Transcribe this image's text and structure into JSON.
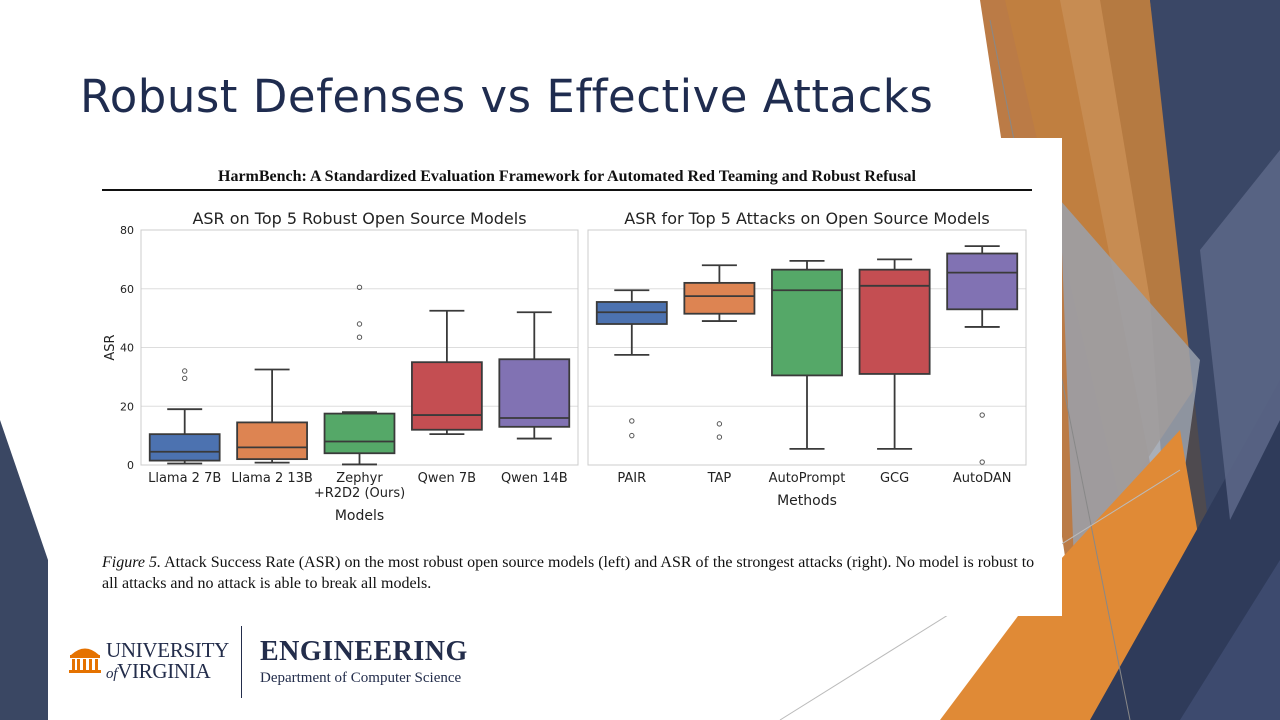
{
  "slide": {
    "title": "Robust Defenses vs Effective Attacks"
  },
  "figure": {
    "paper_header": "HarmBench: A Standardized Evaluation Framework for Automated Red Teaming and Robust Refusal",
    "caption_label": "Figure 5.",
    "caption_text": " Attack Success Rate (ASR) on the most robust open source models (left) and ASR of the strongest attacks (right). No model is robust to all attacks and no attack is able to break all models."
  },
  "logos": {
    "university_line1": "UNIVERSITY",
    "university_line2": "VIRGINIA",
    "university_of": "of",
    "engineering": "ENGINEERING",
    "department": "Department of Computer Science"
  },
  "colors": {
    "navy": "#1f2c4f",
    "orange": "#e07b22",
    "blue_box": "#4c72b0",
    "orange_box": "#dd8452",
    "green_box": "#55a868",
    "red_box": "#c44e52",
    "purple_box": "#8172b3"
  },
  "chart_data": [
    {
      "type": "box",
      "title": "ASR on Top 5 Robust Open Source Models",
      "xlabel": "Models",
      "ylabel": "ASR",
      "ylim": [
        0,
        80
      ],
      "yticks": [
        0,
        20,
        40,
        60,
        80
      ],
      "grid": true,
      "categories": [
        "Llama 2 7B",
        "Llama 2 13B",
        "Zephyr\n+R2D2 (Ours)",
        "Qwen 7B",
        "Qwen 14B"
      ],
      "boxes": [
        {
          "name": "Llama 2 7B",
          "color": "#4c72b0",
          "whisker_low": 0.5,
          "q1": 1.5,
          "median": 4.5,
          "q3": 10.5,
          "whisker_high": 19,
          "outliers": [
            29.5,
            32
          ]
        },
        {
          "name": "Llama 2 13B",
          "color": "#dd8452",
          "whisker_low": 0.8,
          "q1": 2,
          "median": 6,
          "q3": 14.5,
          "whisker_high": 32.5,
          "outliers": []
        },
        {
          "name": "Zephyr +R2D2 (Ours)",
          "color": "#55a868",
          "whisker_low": 0.2,
          "q1": 4,
          "median": 8,
          "q3": 17.5,
          "whisker_high": 18,
          "outliers": [
            43.5,
            48,
            60.5
          ]
        },
        {
          "name": "Qwen 7B",
          "color": "#c44e52",
          "whisker_low": 10.5,
          "q1": 12,
          "median": 17,
          "q3": 35,
          "whisker_high": 52.5,
          "outliers": []
        },
        {
          "name": "Qwen 14B",
          "color": "#8172b3",
          "whisker_low": 9,
          "q1": 13,
          "median": 16,
          "q3": 36,
          "whisker_high": 52,
          "outliers": []
        }
      ]
    },
    {
      "type": "box",
      "title": "ASR for Top 5 Attacks on Open Source Models",
      "xlabel": "Methods",
      "ylabel": "",
      "ylim": [
        0,
        80
      ],
      "grid": true,
      "categories": [
        "PAIR",
        "TAP",
        "AutoPrompt",
        "GCG",
        "AutoDAN"
      ],
      "boxes": [
        {
          "name": "PAIR",
          "color": "#4c72b0",
          "whisker_low": 37.5,
          "q1": 48,
          "median": 52,
          "q3": 55.5,
          "whisker_high": 59.5,
          "outliers": [
            10,
            15
          ]
        },
        {
          "name": "TAP",
          "color": "#dd8452",
          "whisker_low": 49,
          "q1": 51.5,
          "median": 57.5,
          "q3": 62,
          "whisker_high": 68,
          "outliers": [
            9.5,
            14
          ]
        },
        {
          "name": "AutoPrompt",
          "color": "#55a868",
          "whisker_low": 5.5,
          "q1": 30.5,
          "median": 59.5,
          "q3": 66.5,
          "whisker_high": 69.5,
          "outliers": []
        },
        {
          "name": "GCG",
          "color": "#c44e52",
          "whisker_low": 5.5,
          "q1": 31,
          "median": 61,
          "q3": 66.5,
          "whisker_high": 70,
          "outliers": []
        },
        {
          "name": "AutoDAN",
          "color": "#8172b3",
          "whisker_low": 47,
          "q1": 53,
          "median": 65.5,
          "q3": 72,
          "whisker_high": 74.5,
          "outliers": [
            1,
            17
          ]
        }
      ]
    }
  ]
}
